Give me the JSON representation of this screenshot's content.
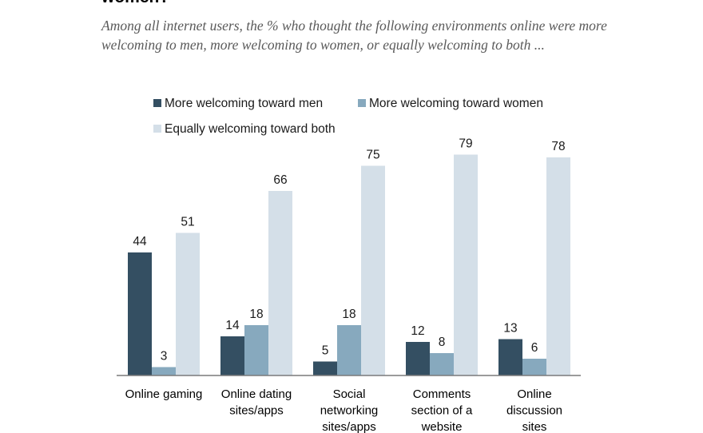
{
  "header": {
    "title_fragment": "women?",
    "subtitle": "Among all internet users, the % who thought the following environments online were more welcoming to men, more welcoming to women, or equally welcoming to both ..."
  },
  "chart_data": {
    "type": "bar",
    "title": "women?",
    "subtitle": "Among all internet users, the % who thought the following environments online were more welcoming to men, more welcoming to women, or equally welcoming to both ...",
    "categories": [
      [
        "Online gaming"
      ],
      [
        "Online dating",
        "sites/apps"
      ],
      [
        "Social",
        "networking",
        "sites/apps"
      ],
      [
        "Comments",
        "section of a",
        "website"
      ],
      [
        "Online",
        "discussion",
        "sites"
      ]
    ],
    "series": [
      {
        "name": "More welcoming toward men",
        "color": "#344f62",
        "values": [
          44,
          14,
          5,
          12,
          13
        ]
      },
      {
        "name": "More welcoming toward women",
        "color": "#87a9be",
        "values": [
          3,
          18,
          18,
          8,
          6
        ]
      },
      {
        "name": "Equally welcoming toward both",
        "color": "#d4dfe8",
        "values": [
          51,
          66,
          75,
          79,
          78
        ]
      }
    ],
    "xlabel": "",
    "ylabel": "",
    "ylim": [
      0,
      100
    ],
    "grid": false,
    "legend_position": "top"
  }
}
